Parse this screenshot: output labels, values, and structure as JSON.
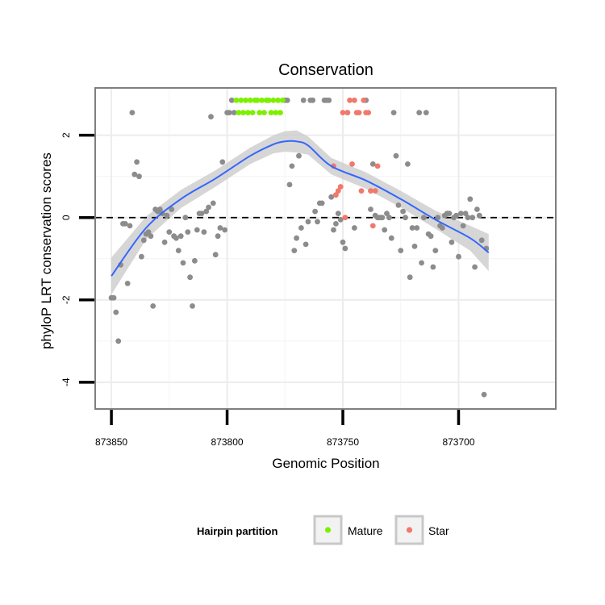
{
  "chart_data": {
    "type": "scatter",
    "title": "Conservation",
    "xlabel": "Genomic Position",
    "ylabel": "phyloP LRT conservation scores",
    "x_reversed": true,
    "xlim": [
      873857,
      873658
    ],
    "ylim": [
      -4.65,
      3.15
    ],
    "x_ticks": [
      873850,
      873800,
      873750,
      873700
    ],
    "x_tick_labels": [
      "873850",
      "873800",
      "873750",
      "873700"
    ],
    "y_ticks": [
      -4,
      -2,
      0,
      2
    ],
    "y_tick_labels": [
      "-4",
      "-2",
      "0",
      "2"
    ],
    "reference_line": {
      "y": 0,
      "style": "dashed"
    },
    "grid": true,
    "colors": {
      "other": "#8c8c8c",
      "Mature": "#7cf000",
      "Star": "#f0796b",
      "smooth": "#3366ff",
      "band": "#cccccc",
      "panel_border": "#7f7f7f"
    },
    "legend": {
      "title": "Hairpin partition",
      "position": "bottom",
      "items": [
        {
          "label": "Mature",
          "color": "#7cf000"
        },
        {
          "label": "Star",
          "color": "#f0796b"
        }
      ]
    },
    "series": [
      {
        "name": "",
        "group": "other",
        "points": [
          [
            873850,
            -1.95
          ],
          [
            873849,
            -1.95
          ],
          [
            873848,
            -2.3
          ],
          [
            873847,
            -3.0
          ],
          [
            873846,
            -1.15
          ],
          [
            873845,
            -0.15
          ],
          [
            873844,
            -0.15
          ],
          [
            873843,
            -1.6
          ],
          [
            873842,
            -0.2
          ],
          [
            873841,
            2.55
          ],
          [
            873840,
            1.05
          ],
          [
            873839,
            1.35
          ],
          [
            873838,
            1.0
          ],
          [
            873837,
            -0.95
          ],
          [
            873836,
            -0.55
          ],
          [
            873835,
            -0.4
          ],
          [
            873834,
            -0.35
          ],
          [
            873833,
            -0.45
          ],
          [
            873832,
            -2.15
          ],
          [
            873831,
            0.2
          ],
          [
            873830,
            0.15
          ],
          [
            873829,
            0.2
          ],
          [
            873828,
            0.1
          ],
          [
            873827,
            -0.6
          ],
          [
            873826,
            0.05
          ],
          [
            873825,
            -0.35
          ],
          [
            873824,
            0.2
          ],
          [
            873823,
            -0.45
          ],
          [
            873822,
            -0.5
          ],
          [
            873821,
            -0.8
          ],
          [
            873820,
            -0.45
          ],
          [
            873819,
            -1.1
          ],
          [
            873818,
            0.0
          ],
          [
            873817,
            -0.35
          ],
          [
            873816,
            -1.45
          ],
          [
            873815,
            -2.15
          ],
          [
            873814,
            -1.05
          ],
          [
            873813,
            -0.3
          ],
          [
            873812,
            0.1
          ],
          [
            873811,
            0.1
          ],
          [
            873810,
            -0.35
          ],
          [
            873809,
            0.15
          ],
          [
            873808,
            0.25
          ],
          [
            873807,
            2.45
          ],
          [
            873806,
            0.35
          ],
          [
            873805,
            -0.9
          ],
          [
            873804,
            -0.45
          ],
          [
            873803,
            -0.25
          ],
          [
            873802,
            1.35
          ],
          [
            873801,
            -0.3
          ],
          [
            873800,
            2.55
          ],
          [
            873799,
            2.55
          ],
          [
            873798,
            2.85
          ],
          [
            873797,
            2.55
          ],
          [
            873775,
            2.85
          ],
          [
            873774,
            2.85
          ],
          [
            873773,
            0.8
          ],
          [
            873772,
            1.25
          ],
          [
            873771,
            -0.8
          ],
          [
            873770,
            -0.5
          ],
          [
            873769,
            1.5
          ],
          [
            873768,
            -0.25
          ],
          [
            873767,
            2.85
          ],
          [
            873766,
            -0.65
          ],
          [
            873765,
            -0.1
          ],
          [
            873764,
            2.85
          ],
          [
            873763,
            2.85
          ],
          [
            873762,
            0.15
          ],
          [
            873761,
            -0.1
          ],
          [
            873760,
            0.35
          ],
          [
            873759,
            0.35
          ],
          [
            873758,
            2.85
          ],
          [
            873757,
            2.85
          ],
          [
            873756,
            2.85
          ],
          [
            873755,
            0.5
          ],
          [
            873754,
            -0.3
          ],
          [
            873753,
            -0.15
          ],
          [
            873752,
            0.1
          ],
          [
            873751,
            -0.05
          ],
          [
            873750,
            -0.6
          ],
          [
            873749,
            -0.75
          ],
          [
            873748,
            2.55
          ],
          [
            873745,
            -0.25
          ],
          [
            873740,
            2.85
          ],
          [
            873738,
            0.2
          ],
          [
            873737,
            1.3
          ],
          [
            873736,
            0.05
          ],
          [
            873735,
            0.0
          ],
          [
            873734,
            0.0
          ],
          [
            873733,
            0.0
          ],
          [
            873732,
            -0.3
          ],
          [
            873731,
            0.1
          ],
          [
            873730,
            0.0
          ],
          [
            873729,
            -0.5
          ],
          [
            873728,
            2.55
          ],
          [
            873727,
            1.5
          ],
          [
            873726,
            0.3
          ],
          [
            873725,
            -0.8
          ],
          [
            873724,
            0.15
          ],
          [
            873723,
            0.0
          ],
          [
            873722,
            1.3
          ],
          [
            873721,
            -1.45
          ],
          [
            873720,
            -0.25
          ],
          [
            873719,
            -0.7
          ],
          [
            873718,
            -0.25
          ],
          [
            873717,
            2.55
          ],
          [
            873716,
            -1.1
          ],
          [
            873715,
            0.0
          ],
          [
            873714,
            2.55
          ],
          [
            873713,
            -0.4
          ],
          [
            873712,
            -0.45
          ],
          [
            873711,
            -1.2
          ],
          [
            873710,
            -0.8
          ],
          [
            873709,
            0.0
          ],
          [
            873708,
            -0.2
          ],
          [
            873707,
            -0.25
          ],
          [
            873706,
            0.05
          ],
          [
            873705,
            0.1
          ],
          [
            873704,
            0.1
          ],
          [
            873703,
            -0.6
          ],
          [
            873702,
            0.0
          ],
          [
            873701,
            0.05
          ],
          [
            873700,
            -0.95
          ],
          [
            873699,
            0.1
          ],
          [
            873698,
            -0.2
          ],
          [
            873697,
            0.1
          ],
          [
            873696,
            0.0
          ],
          [
            873695,
            0.45
          ],
          [
            873694,
            0.0
          ],
          [
            873693,
            -1.2
          ],
          [
            873692,
            0.2
          ],
          [
            873691,
            0.05
          ],
          [
            873690,
            -0.55
          ],
          [
            873689,
            -4.3
          ],
          [
            873688,
            -0.75
          ]
        ]
      },
      {
        "name": "Mature",
        "group": "Mature",
        "points": [
          [
            873796,
            2.85
          ],
          [
            873795,
            2.55
          ],
          [
            873794,
            2.85
          ],
          [
            873793,
            2.55
          ],
          [
            873792,
            2.85
          ],
          [
            873791,
            2.55
          ],
          [
            873790,
            2.85
          ],
          [
            873789,
            2.55
          ],
          [
            873788,
            2.85
          ],
          [
            873787,
            2.85
          ],
          [
            873786,
            2.55
          ],
          [
            873785,
            2.85
          ],
          [
            873784,
            2.55
          ],
          [
            873783,
            2.85
          ],
          [
            873782,
            2.85
          ],
          [
            873781,
            2.55
          ],
          [
            873780,
            2.85
          ],
          [
            873779,
            2.55
          ],
          [
            873778,
            2.85
          ],
          [
            873777,
            2.55
          ],
          [
            873776,
            2.85
          ]
        ]
      },
      {
        "name": "Star",
        "group": "Star",
        "points": [
          [
            873754,
            1.25
          ],
          [
            873753,
            0.55
          ],
          [
            873752,
            0.65
          ],
          [
            873751,
            0.75
          ],
          [
            873750,
            2.55
          ],
          [
            873749,
            0.0
          ],
          [
            873748,
            2.55
          ],
          [
            873747,
            2.85
          ],
          [
            873746,
            1.3
          ],
          [
            873745,
            2.85
          ],
          [
            873744,
            2.55
          ],
          [
            873743,
            2.55
          ],
          [
            873742,
            0.65
          ],
          [
            873741,
            2.85
          ],
          [
            873740,
            2.55
          ],
          [
            873739,
            2.55
          ],
          [
            873738,
            0.65
          ],
          [
            873737,
            -0.2
          ],
          [
            873736,
            0.65
          ],
          [
            873735,
            1.25
          ]
        ]
      }
    ],
    "smooth": {
      "type": "loess",
      "x": [
        873850,
        873835,
        873820,
        873805,
        873790,
        873780,
        873775,
        873770,
        873765,
        873755,
        873740,
        873725,
        873710,
        873695,
        873687
      ],
      "y": [
        -1.42,
        -0.25,
        0.45,
        0.95,
        1.5,
        1.78,
        1.85,
        1.85,
        1.75,
        1.25,
        0.9,
        0.45,
        -0.05,
        -0.5,
        -0.85
      ],
      "band_halfwidth": [
        0.45,
        0.28,
        0.22,
        0.2,
        0.2,
        0.22,
        0.25,
        0.27,
        0.22,
        0.2,
        0.2,
        0.2,
        0.22,
        0.3,
        0.45
      ]
    }
  }
}
